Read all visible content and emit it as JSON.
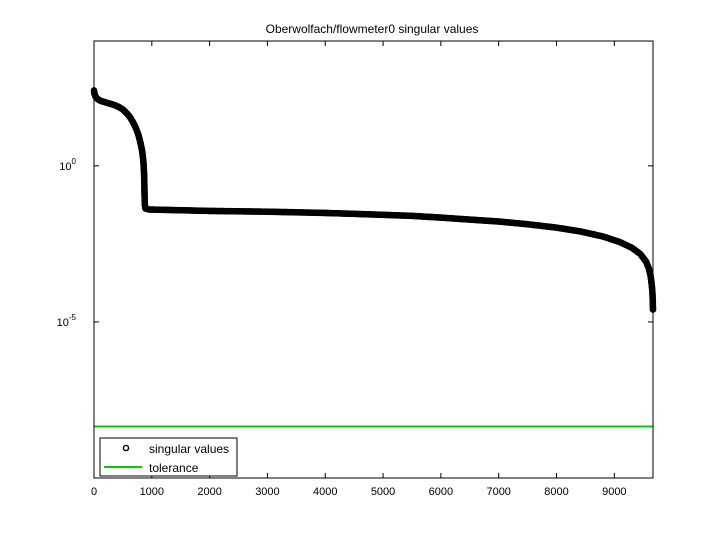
{
  "chart_data": {
    "type": "scatter",
    "title": "Oberwolfach/flowmeter0 singular values",
    "xlabel": "",
    "ylabel": "",
    "xlim": [
      0,
      9669
    ],
    "ylim_log10": [
      -10,
      4
    ],
    "y_scale": "log",
    "grid": false,
    "legend_position": "bottom-left",
    "x_ticks": [
      0,
      1000,
      2000,
      3000,
      4000,
      5000,
      6000,
      7000,
      8000,
      9000
    ],
    "x_tick_labels": [
      "0",
      "1000",
      "2000",
      "3000",
      "4000",
      "5000",
      "6000",
      "7000",
      "8000",
      "9000"
    ],
    "y_ticks": [
      {
        "value": 1,
        "base": "10",
        "exp": "0"
      },
      {
        "value": 1e-05,
        "base": "10",
        "exp": "-5"
      }
    ],
    "series": [
      {
        "name": "singular values",
        "style": "open-circle-marker",
        "color": "#000000",
        "x": [
          0,
          10,
          30,
          60,
          100,
          150,
          200,
          260,
          320,
          380,
          440,
          500,
          560,
          620,
          680,
          720,
          760,
          790,
          810,
          830,
          845,
          855,
          862,
          866,
          869,
          871,
          873,
          875,
          877,
          880,
          890,
          950,
          1200,
          1600,
          2000,
          2500,
          3000,
          3500,
          4000,
          4500,
          5000,
          5500,
          6000,
          6500,
          7000,
          7500,
          8000,
          8400,
          8800,
          9100,
          9300,
          9450,
          9550,
          9600,
          9630,
          9650,
          9660,
          9666,
          9669
        ],
        "y": [
          260,
          200,
          160,
          140,
          125,
          115,
          108,
          100,
          93,
          85,
          75,
          64,
          50,
          37,
          24,
          17,
          11,
          7,
          4.8,
          3.2,
          2,
          1.3,
          0.8,
          0.55,
          0.38,
          0.25,
          0.16,
          0.11,
          0.08,
          0.056,
          0.043,
          0.04,
          0.039,
          0.0375,
          0.036,
          0.035,
          0.034,
          0.0325,
          0.031,
          0.029,
          0.027,
          0.025,
          0.022,
          0.019,
          0.0165,
          0.0135,
          0.0105,
          0.008,
          0.0055,
          0.0036,
          0.0024,
          0.0015,
          0.00085,
          0.0005,
          0.00028,
          0.00014,
          8e-05,
          4e-05,
          2.5e-05
        ]
      },
      {
        "name": "tolerance",
        "style": "line",
        "color": "#00cc00",
        "y_const_log10": -8.35
      }
    ]
  }
}
